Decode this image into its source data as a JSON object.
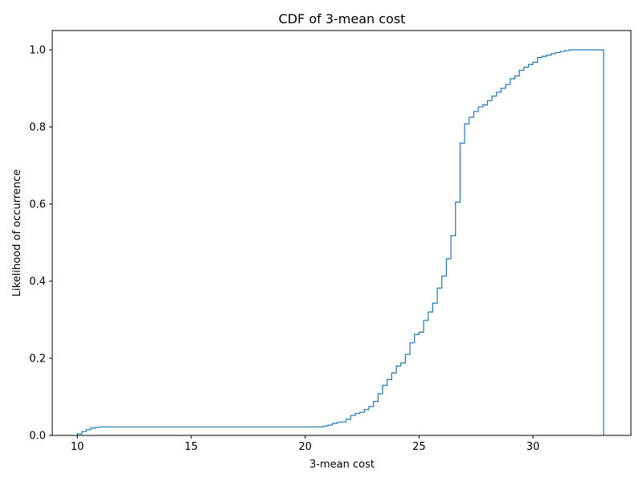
{
  "chart_data": {
    "type": "line",
    "step": true,
    "title": "CDF of 3-mean cost",
    "xlabel": "3-mean cost",
    "ylabel": "Likelihood of occurrence",
    "xlim": [
      8.9,
      34.3
    ],
    "ylim": [
      0,
      1.05
    ],
    "xticks": [
      10,
      15,
      20,
      25,
      30
    ],
    "yticks": [
      0.0,
      0.2,
      0.4,
      0.6,
      0.8,
      1.0
    ],
    "xtick_labels": [
      "10",
      "15",
      "20",
      "25",
      "30"
    ],
    "ytick_labels": [
      "0.0",
      "0.2",
      "0.4",
      "0.6",
      "0.8",
      "1.0"
    ],
    "grid": false,
    "line_color": "#1f77b4",
    "series": [
      {
        "x": [
          10.0,
          10.2,
          10.4,
          10.6,
          10.8,
          11.0,
          20.6,
          20.8,
          21.0,
          21.2,
          21.4,
          21.6,
          21.8,
          22.0,
          22.2,
          22.4,
          22.6,
          22.8,
          23.0,
          23.2,
          23.4,
          23.6,
          23.8,
          24.0,
          24.2,
          24.4,
          24.6,
          24.8,
          25.0,
          25.2,
          25.4,
          25.6,
          25.8,
          26.0,
          26.2,
          26.4,
          26.6,
          26.8,
          27.0,
          27.2,
          27.4,
          27.6,
          27.8,
          28.0,
          28.2,
          28.4,
          28.6,
          28.8,
          29.0,
          29.2,
          29.4,
          29.6,
          29.8,
          30.0,
          30.2,
          30.4,
          30.6,
          30.8,
          31.0,
          31.2,
          31.4,
          31.6,
          31.8,
          32.0,
          32.2,
          32.4,
          32.6,
          32.8,
          33.0,
          33.1
        ],
        "y": [
          0.004,
          0.01,
          0.015,
          0.019,
          0.021,
          0.022,
          0.022,
          0.024,
          0.027,
          0.031,
          0.034,
          0.035,
          0.042,
          0.052,
          0.057,
          0.06,
          0.067,
          0.075,
          0.088,
          0.108,
          0.13,
          0.145,
          0.162,
          0.18,
          0.188,
          0.21,
          0.24,
          0.262,
          0.268,
          0.298,
          0.32,
          0.343,
          0.382,
          0.413,
          0.458,
          0.518,
          0.605,
          0.758,
          0.808,
          0.825,
          0.84,
          0.852,
          0.857,
          0.868,
          0.88,
          0.89,
          0.9,
          0.91,
          0.925,
          0.932,
          0.947,
          0.955,
          0.962,
          0.968,
          0.98,
          0.983,
          0.986,
          0.99,
          0.993,
          0.996,
          0.998,
          1.0,
          1.0,
          1.0,
          1.0,
          1.0,
          1.0,
          1.0,
          1.0,
          0.0
        ]
      }
    ]
  }
}
